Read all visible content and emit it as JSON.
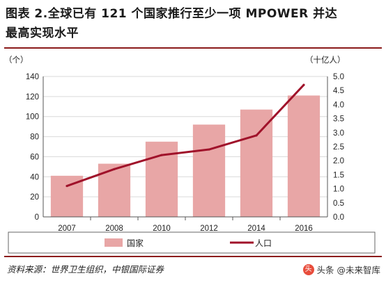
{
  "header": {
    "title_line1": "图表 2.全球已有 121 个国家推行至少一项 MPOWER 并达",
    "title_line2": "最高实现水平"
  },
  "chart_data": {
    "type": "bar",
    "categories": [
      "2007",
      "2008",
      "2010",
      "2012",
      "2014",
      "2016"
    ],
    "series": [
      {
        "name": "国家",
        "type": "bar",
        "axis": "left",
        "color": "#e8a6a6",
        "values": [
          41,
          53,
          75,
          92,
          107,
          121
        ]
      },
      {
        "name": "人口",
        "type": "line",
        "axis": "right",
        "color": "#a0122a",
        "values": [
          1.1,
          1.7,
          2.2,
          2.4,
          2.9,
          4.7
        ]
      }
    ],
    "left_axis": {
      "unit": "（个）",
      "min": 0,
      "max": 140,
      "step": 20,
      "ticks": [
        "0",
        "20",
        "40",
        "60",
        "80",
        "100",
        "120",
        "140"
      ]
    },
    "right_axis": {
      "unit": "（十亿人）",
      "min": 0,
      "max": 5,
      "step": 0.5,
      "ticks": [
        "0.0",
        "0.5",
        "1.0",
        "1.5",
        "2.0",
        "2.5",
        "3.0",
        "3.5",
        "4.0",
        "4.5",
        "5.0"
      ]
    },
    "grid": true,
    "legend_position": "bottom"
  },
  "footer": {
    "source": "资料来源：世界卫生组织，中银国际证券",
    "watermark_icon": "头",
    "watermark": "头条 @未来智库"
  }
}
